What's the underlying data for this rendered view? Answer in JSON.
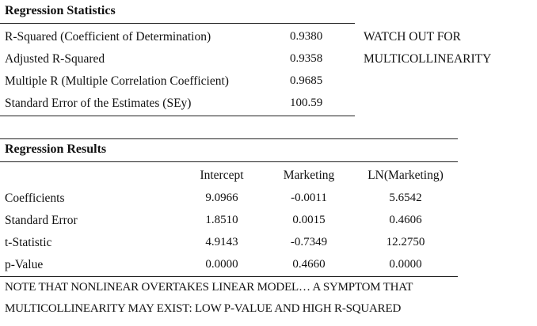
{
  "stats": {
    "title": "Regression Statistics",
    "rows": [
      {
        "label": "R-Squared (Coefficient of Determination)",
        "value": "0.9380"
      },
      {
        "label": "Adjusted R-Squared",
        "value": "0.9358"
      },
      {
        "label": "Multiple R (Multiple Correlation Coefficient)",
        "value": "0.9685"
      },
      {
        "label": "Standard Error of the Estimates (SEy)",
        "value": "100.59"
      }
    ],
    "note_line1": "WATCH OUT FOR",
    "note_line2": "MULTICOLLINEARITY"
  },
  "results": {
    "title": "Regression Results",
    "columns": [
      "Intercept",
      "Marketing",
      "LN(Marketing)"
    ],
    "rows": [
      {
        "label": "Coefficients",
        "values": [
          "9.0966",
          "-0.0011",
          "5.6542"
        ]
      },
      {
        "label": "Standard Error",
        "values": [
          "1.8510",
          "0.0015",
          "0.4606"
        ]
      },
      {
        "label": "t-Statistic",
        "values": [
          "4.9143",
          "-0.7349",
          "12.2750"
        ]
      },
      {
        "label": "p-Value",
        "values": [
          "0.0000",
          "0.4660",
          "0.0000"
        ]
      }
    ]
  },
  "footer": {
    "line1": "NOTE THAT NONLINEAR OVERTAKES LINEAR MODEL… A SYMPTOM THAT",
    "line2": "MULTICOLLINEARITY MAY EXIST: LOW P-VALUE AND HIGH R-SQUARED"
  }
}
